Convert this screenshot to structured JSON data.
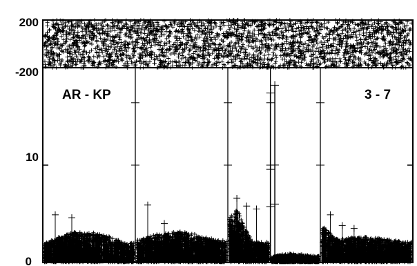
{
  "chart_data": [
    {
      "type": "scatter",
      "title": "",
      "marker": "+",
      "color": "#000000",
      "ylim": [
        -200,
        200
      ],
      "y_ticks": [
        {
          "value": 200,
          "label": "200"
        },
        {
          "value": -200,
          "label": "-200"
        }
      ],
      "series": [
        {
          "values_range": [
            -200,
            200
          ]
        }
      ]
    },
    {
      "type": "scatter",
      "title": "",
      "marker": "+",
      "color": "#000000",
      "ylim": [
        0,
        20
      ],
      "y_ticks": [
        {
          "value": 10,
          "label": "10"
        },
        {
          "value": 0,
          "label": "0"
        }
      ],
      "panel_labels": [
        "AR - KP",
        "3 - 7"
      ],
      "segment_boundaries": [
        0.25,
        0.5,
        0.615,
        0.75
      ],
      "tall_markers": [
        {
          "x": 0.615,
          "y_top": 17.4
        },
        {
          "x": 0.627,
          "y_top": 18.2
        }
      ],
      "segments": [
        {
          "x": [
            0.0,
            0.25
          ],
          "baseline": 1.9,
          "hump": 1.2,
          "outliers": [
            4.9,
            4.6
          ]
        },
        {
          "x": [
            0.25,
            0.5
          ],
          "baseline": 2.2,
          "hump": 0.9,
          "outliers": [
            5.9,
            4.0
          ]
        },
        {
          "x": [
            0.5,
            0.615
          ],
          "baseline": 2.0,
          "hump": 3.4,
          "outliers": [
            6.6,
            5.8,
            5.5
          ]
        },
        {
          "x": [
            0.615,
            0.75
          ],
          "baseline": 0.6,
          "hump": 0.2,
          "outliers": []
        },
        {
          "x": [
            0.75,
            1.0
          ],
          "baseline": 2.0,
          "hump": 1.0,
          "outliers": [
            4.9,
            3.8,
            3.5
          ]
        }
      ]
    }
  ]
}
